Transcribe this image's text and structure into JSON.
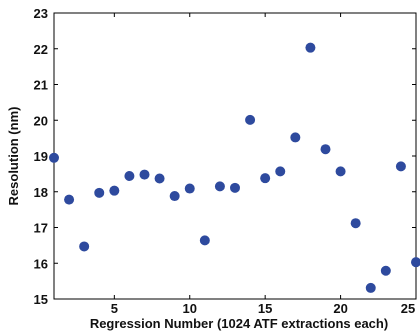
{
  "chart_data": {
    "type": "scatter",
    "title": "",
    "xlabel": "Regression Number (1024 ATF extractions each)",
    "ylabel": "Resolution (nm)",
    "xlim": [
      1,
      25
    ],
    "ylim": [
      15,
      23
    ],
    "x_ticks": [
      5,
      10,
      15,
      20,
      25
    ],
    "y_ticks": [
      15,
      16,
      17,
      18,
      19,
      20,
      21,
      22,
      23
    ],
    "grid": false,
    "legend": "none",
    "marker_color": "#2e4a9e",
    "series": [
      {
        "x": [
          1,
          2,
          3,
          4,
          5,
          6,
          7,
          8,
          9,
          10,
          11,
          12,
          13,
          14,
          15,
          16,
          17,
          18,
          19,
          20,
          21,
          22,
          23,
          24,
          25
        ],
        "y": [
          18.95,
          17.78,
          16.47,
          17.97,
          18.03,
          18.44,
          18.48,
          18.37,
          17.88,
          18.09,
          16.64,
          18.15,
          18.11,
          20.01,
          18.38,
          18.57,
          19.52,
          22.03,
          19.19,
          18.57,
          17.12,
          15.31,
          15.79,
          18.71,
          16.03
        ]
      }
    ]
  }
}
